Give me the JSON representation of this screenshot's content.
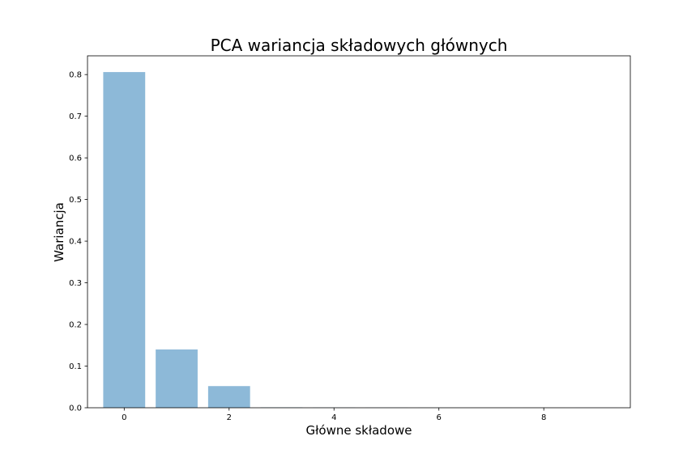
{
  "chart_data": {
    "type": "bar",
    "title": "PCA wariancja składowych głównych",
    "xlabel": "Główne składowe",
    "ylabel": "Wariancja",
    "x": [
      0,
      1,
      2,
      3,
      4,
      5,
      6,
      7,
      8,
      9
    ],
    "values": [
      0.806,
      0.14,
      0.052,
      0.001,
      0.0005,
      0.0003,
      0.0002,
      0.0001,
      0.0001,
      5e-05
    ],
    "xlim": [
      -0.7,
      9.65
    ],
    "ylim": [
      0,
      0.845
    ],
    "xticks": [
      0,
      2,
      4,
      6,
      8
    ],
    "yticks": [
      0.0,
      0.1,
      0.2,
      0.3,
      0.4,
      0.5,
      0.6,
      0.7,
      0.8
    ],
    "ytick_labels": [
      "0.0",
      "0.1",
      "0.2",
      "0.3",
      "0.4",
      "0.5",
      "0.6",
      "0.7",
      "0.8"
    ],
    "bar_color": "#8db9d8",
    "grid": false,
    "legend": false
  }
}
